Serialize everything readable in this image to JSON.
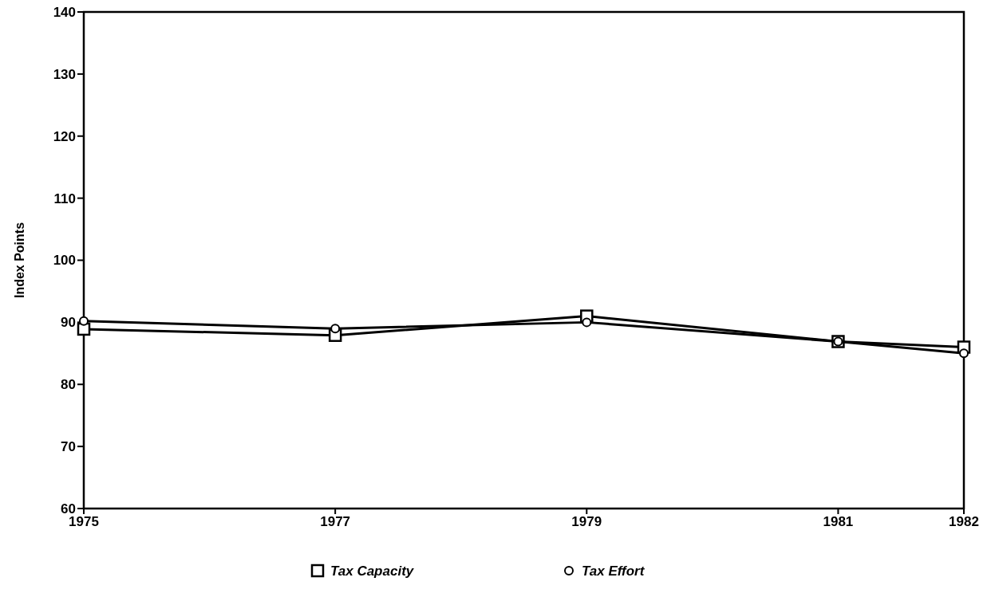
{
  "chart_data": {
    "type": "line",
    "ylabel": "Index Points",
    "x": [
      1975,
      1977,
      1979,
      1981,
      1982
    ],
    "xlim": [
      1975,
      1982
    ],
    "xticks": [
      1975,
      1977,
      1979,
      1981,
      1982
    ],
    "ylim": [
      60,
      140
    ],
    "yticks": [
      60,
      70,
      80,
      90,
      100,
      110,
      120,
      130,
      140
    ],
    "series": [
      {
        "name": "Tax Capacity",
        "color": "#000000",
        "marker": "square",
        "values": [
          88.9,
          87.9,
          91,
          86.9,
          86
        ]
      },
      {
        "name": "Tax Effort",
        "color": "#000000",
        "marker": "circle",
        "values": [
          90.2,
          89,
          90,
          86.9,
          85
        ]
      }
    ],
    "legend": "bottom",
    "grid": false,
    "line_style": "solid"
  }
}
